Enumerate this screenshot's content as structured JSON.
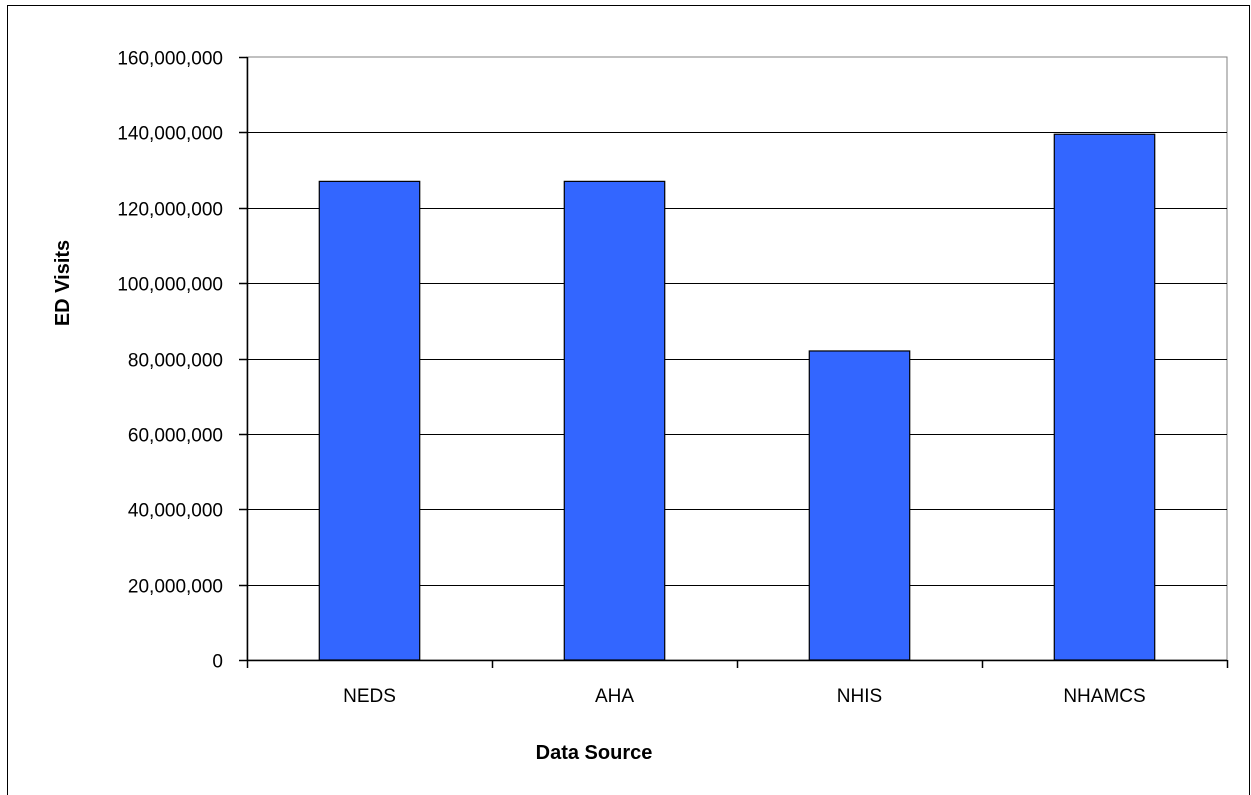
{
  "chart_data": {
    "type": "bar",
    "title": "",
    "xlabel": "Data Source",
    "ylabel": "ED Visits",
    "categories": [
      "NEDS",
      "AHA",
      "NHIS",
      "NHAMCS"
    ],
    "values": [
      127000000,
      127000000,
      82000000,
      139500000
    ],
    "ylim": [
      0,
      160000000
    ],
    "yticks": [
      0,
      20000000,
      40000000,
      60000000,
      80000000,
      100000000,
      120000000,
      140000000,
      160000000
    ],
    "ytick_labels": [
      "0",
      "20,000,000",
      "40,000,000",
      "60,000,000",
      "80,000,000",
      "100,000,000",
      "120,000,000",
      "140,000,000",
      "160,000,000"
    ],
    "grid": true,
    "legend": "none",
    "bar_color": "#3366FF",
    "plot_border_color": "#808080",
    "gridline_color": "#000000"
  }
}
